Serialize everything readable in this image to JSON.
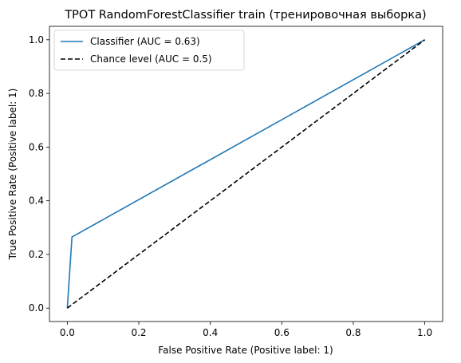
{
  "chart_data": {
    "type": "line",
    "title": "TPOT RandomForestClassifier train (тренировочная выборка)",
    "xlabel": "False Positive Rate (Positive label: 1)",
    "ylabel": "True Positive Rate (Positive label: 1)",
    "xlim": [
      -0.05,
      1.05
    ],
    "ylim": [
      -0.05,
      1.05
    ],
    "xticks": [
      "0.0",
      "0.2",
      "0.4",
      "0.6",
      "0.8",
      "1.0"
    ],
    "yticks": [
      "0.0",
      "0.2",
      "0.4",
      "0.6",
      "0.8",
      "1.0"
    ],
    "grid": false,
    "legend_position": "upper-left",
    "series": [
      {
        "name": "Classifier (AUC = 0.63)",
        "color": "#1f77b4",
        "linestyle": "solid",
        "x": [
          0.0,
          0.013,
          1.0
        ],
        "y": [
          0.0,
          0.265,
          1.0
        ]
      },
      {
        "name": "Chance level (AUC = 0.5)",
        "color": "#000000",
        "linestyle": "dashed",
        "x": [
          0.0,
          1.0
        ],
        "y": [
          0.0,
          1.0
        ]
      }
    ]
  }
}
